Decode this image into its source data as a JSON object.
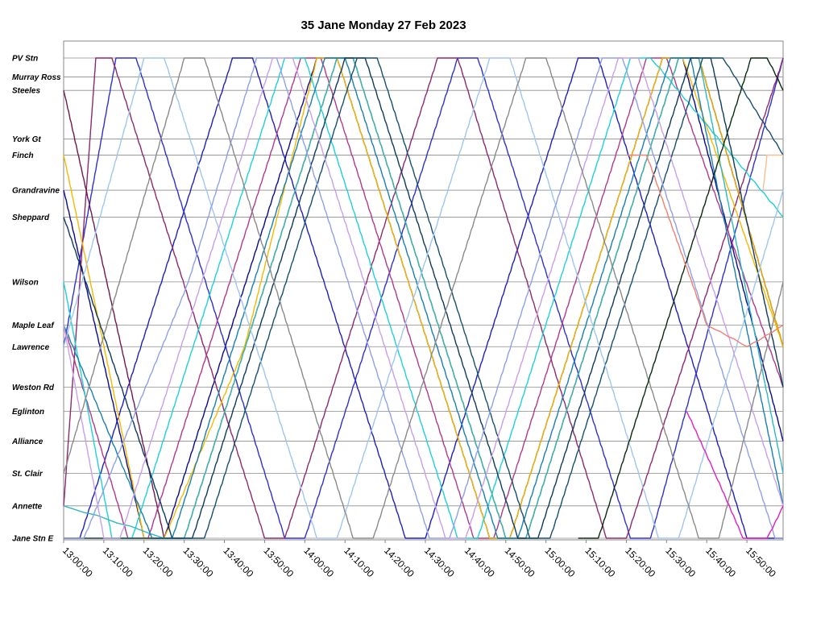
{
  "chart_data": {
    "type": "line",
    "title": "35 Jane Monday 27 Feb 2023",
    "xlabel": "",
    "ylabel": "",
    "x_ticks": [
      "13:00:00",
      "13:10:00",
      "13:20:00",
      "13:30:00",
      "13:40:00",
      "13:50:00",
      "14:00:00",
      "14:10:00",
      "14:20:00",
      "14:30:00",
      "14:40:00",
      "14:50:00",
      "15:00:00",
      "15:10:00",
      "15:20:00",
      "15:30:00",
      "15:40:00",
      "15:50:00"
    ],
    "xlim": [
      "13:00:00",
      "15:59:00"
    ],
    "grid": true,
    "legend": "none",
    "stops": [
      {
        "name": "PV Stn",
        "km": 0
      },
      {
        "name": "Murray Ross",
        "km": 0.7
      },
      {
        "name": "Steeles",
        "km": 1.2
      },
      {
        "name": "York Gt",
        "km": 3.0
      },
      {
        "name": "Finch",
        "km": 3.6
      },
      {
        "name": "Grandravine",
        "km": 4.9
      },
      {
        "name": "Sheppard",
        "km": 5.9
      },
      {
        "name": "Wilson",
        "km": 8.3
      },
      {
        "name": "Maple Leaf",
        "km": 9.9
      },
      {
        "name": "Lawrence",
        "km": 10.7
      },
      {
        "name": "Weston Rd",
        "km": 12.2
      },
      {
        "name": "Eglinton",
        "km": 13.1
      },
      {
        "name": "Alliance",
        "km": 14.2
      },
      {
        "name": "St. Clair",
        "km": 15.4
      },
      {
        "name": "Annette",
        "km": 16.6
      },
      {
        "name": "Jane Stn E",
        "km": 17.8
      }
    ],
    "series": [
      {
        "color": "#1f1fbf",
        "points": [
          [
            "13:00",
            "Jane Stn E"
          ],
          [
            "13:04",
            "Jane Stn E"
          ],
          [
            "13:42",
            "PV Stn"
          ],
          [
            "13:47",
            "PV Stn"
          ],
          [
            "14:25",
            "Jane Stn E"
          ],
          [
            "14:30",
            "Jane Stn E"
          ],
          [
            "15:08",
            "PV Stn"
          ],
          [
            "15:13",
            "PV Stn"
          ],
          [
            "15:50",
            "Jane Stn E"
          ],
          [
            "15:59",
            "Jane Stn E"
          ]
        ]
      },
      {
        "color": "#0a0a8c",
        "points": [
          [
            "13:00",
            "Grandravine"
          ],
          [
            "13:20",
            "Jane Stn E"
          ],
          [
            "13:25",
            "Jane Stn E"
          ],
          [
            "14:03",
            "PV Stn"
          ],
          [
            "14:08",
            "PV Stn"
          ],
          [
            "14:46",
            "Jane Stn E"
          ],
          [
            "14:51",
            "Jane Stn E"
          ],
          [
            "15:29",
            "PV Stn"
          ],
          [
            "15:34",
            "PV Stn"
          ],
          [
            "15:59",
            "Alliance"
          ]
        ]
      },
      {
        "color": "#3030d0",
        "points": [
          [
            "13:00",
            "Lawrence"
          ],
          [
            "13:13",
            "PV Stn"
          ],
          [
            "13:18",
            "PV Stn"
          ],
          [
            "13:55",
            "Jane Stn E"
          ],
          [
            "14:00",
            "Jane Stn E"
          ],
          [
            "14:38",
            "PV Stn"
          ],
          [
            "14:43",
            "PV Stn"
          ],
          [
            "15:21",
            "Jane Stn E"
          ],
          [
            "15:26",
            "Jane Stn E"
          ],
          [
            "15:59",
            "PV Stn"
          ]
        ]
      },
      {
        "color": "#8c2a6e",
        "points": [
          [
            "13:00",
            "Annette"
          ],
          [
            "13:08",
            "PV Stn"
          ],
          [
            "13:12",
            "PV Stn"
          ],
          [
            "13:50",
            "Jane Stn E"
          ],
          [
            "13:55",
            "Jane Stn E"
          ],
          [
            "14:33",
            "PV Stn"
          ],
          [
            "14:38",
            "PV Stn"
          ],
          [
            "15:15",
            "Jane Stn E"
          ],
          [
            "15:20",
            "Jane Stn E"
          ],
          [
            "15:59",
            "PV Stn"
          ]
        ]
      },
      {
        "color": "#6e1a4e",
        "points": [
          [
            "13:00",
            "Steeles"
          ],
          [
            "13:25",
            "Jane Stn E"
          ],
          [
            "13:30",
            "Jane Stn E"
          ],
          [
            "14:08",
            "PV Stn"
          ],
          [
            "14:12",
            "PV Stn"
          ],
          [
            "14:50",
            "Jane Stn E"
          ],
          [
            "14:55",
            "Jane Stn E"
          ],
          [
            "15:33",
            "PV Stn"
          ],
          [
            "15:38",
            "PV Stn"
          ],
          [
            "15:59",
            "Lawrence"
          ]
        ]
      },
      {
        "color": "#b03a8a",
        "points": [
          [
            "13:00",
            "Maple Leaf"
          ],
          [
            "13:16",
            "Jane Stn E"
          ],
          [
            "13:21",
            "Jane Stn E"
          ],
          [
            "13:59",
            "PV Stn"
          ],
          [
            "14:04",
            "PV Stn"
          ],
          [
            "14:42",
            "Jane Stn E"
          ],
          [
            "14:47",
            "Jane Stn E"
          ],
          [
            "15:25",
            "PV Stn"
          ],
          [
            "15:30",
            "PV Stn"
          ],
          [
            "15:59",
            "Weston Rd"
          ]
        ]
      },
      {
        "color": "#f5b800",
        "points": [
          [
            "13:00",
            "Finch"
          ],
          [
            "13:20",
            "Jane Stn E"
          ],
          [
            "13:25",
            "Jane Stn E"
          ],
          [
            "13:45",
            "Lawrence"
          ],
          [
            "14:03",
            "PV Stn"
          ],
          [
            "14:08",
            "PV Stn"
          ],
          [
            "14:46",
            "Jane Stn E"
          ],
          [
            "14:51",
            "Jane Stn E"
          ],
          [
            "15:29",
            "PV Stn"
          ],
          [
            "15:34",
            "PV Stn"
          ],
          [
            "15:59",
            "Lawrence"
          ]
        ]
      },
      {
        "color": "#e6a800",
        "points": [
          [
            "13:00",
            "Jane Stn E"
          ],
          [
            "13:30",
            "Jane Stn E"
          ],
          [
            "14:08",
            "PV Stn"
          ],
          [
            "14:12",
            "PV Stn"
          ],
          [
            "14:50",
            "Jane Stn E"
          ],
          [
            "14:55",
            "Jane Stn E"
          ],
          [
            "15:33",
            "PV Stn"
          ],
          [
            "15:38",
            "PV Stn"
          ],
          [
            "15:59",
            "Lawrence"
          ]
        ]
      },
      {
        "color": "#1fd0d8",
        "points": [
          [
            "13:00",
            "Wilson"
          ],
          [
            "13:12",
            "Jane Stn E"
          ],
          [
            "13:17",
            "Jane Stn E"
          ],
          [
            "13:55",
            "PV Stn"
          ],
          [
            "14:00",
            "PV Stn"
          ],
          [
            "14:38",
            "Jane Stn E"
          ],
          [
            "14:43",
            "Jane Stn E"
          ],
          [
            "15:21",
            "PV Stn"
          ],
          [
            "15:26",
            "PV Stn"
          ],
          [
            "15:59",
            "Sheppard"
          ]
        ]
      },
      {
        "color": "#2fb8c0",
        "points": [
          [
            "13:00",
            "Annette"
          ],
          [
            "13:25",
            "Jane Stn E"
          ],
          [
            "13:30",
            "Jane Stn E"
          ],
          [
            "14:08",
            "PV Stn"
          ],
          [
            "14:12",
            "PV Stn"
          ],
          [
            "14:50",
            "Jane Stn E"
          ],
          [
            "14:55",
            "Jane Stn E"
          ],
          [
            "15:33",
            "PV Stn"
          ],
          [
            "15:38",
            "PV Stn"
          ],
          [
            "15:59",
            "St. Clair"
          ]
        ]
      },
      {
        "color": "#1a7fb0",
        "points": [
          [
            "13:00",
            "Maple Leaf"
          ],
          [
            "13:22",
            "Jane Stn E"
          ],
          [
            "13:27",
            "Jane Stn E"
          ],
          [
            "14:05",
            "PV Stn"
          ],
          [
            "14:10",
            "PV Stn"
          ],
          [
            "14:48",
            "Jane Stn E"
          ],
          [
            "14:53",
            "Jane Stn E"
          ],
          [
            "15:31",
            "PV Stn"
          ],
          [
            "15:36",
            "PV Stn"
          ],
          [
            "15:59",
            "Annette"
          ]
        ]
      },
      {
        "color": "#0f3a5c",
        "points": [
          [
            "13:00",
            "Sheppard"
          ],
          [
            "13:27",
            "Jane Stn E"
          ],
          [
            "13:32",
            "Jane Stn E"
          ],
          [
            "14:10",
            "PV Stn"
          ],
          [
            "14:15",
            "PV Stn"
          ],
          [
            "14:53",
            "Jane Stn E"
          ],
          [
            "14:58",
            "Jane Stn E"
          ],
          [
            "15:36",
            "PV Stn"
          ],
          [
            "15:41",
            "PV Stn"
          ],
          [
            "15:59",
            "Weston Rd"
          ]
        ]
      },
      {
        "color": "#174f6e",
        "points": [
          [
            "13:00",
            "Jane Stn E"
          ],
          [
            "13:35",
            "Jane Stn E"
          ],
          [
            "14:13",
            "PV Stn"
          ],
          [
            "14:18",
            "PV Stn"
          ],
          [
            "14:56",
            "Jane Stn E"
          ],
          [
            "15:01",
            "Jane Stn E"
          ],
          [
            "15:39",
            "PV Stn"
          ],
          [
            "15:44",
            "PV Stn"
          ],
          [
            "15:59",
            "Finch"
          ]
        ]
      },
      {
        "color": "#9fc6ee",
        "points": [
          [
            "13:00",
            "Lawrence"
          ],
          [
            "13:20",
            "PV Stn"
          ],
          [
            "13:25",
            "PV Stn"
          ],
          [
            "14:03",
            "Jane Stn E"
          ],
          [
            "14:08",
            "Jane Stn E"
          ],
          [
            "14:46",
            "PV Stn"
          ],
          [
            "14:51",
            "PV Stn"
          ],
          [
            "15:28",
            "Jane Stn E"
          ],
          [
            "15:33",
            "Jane Stn E"
          ],
          [
            "15:59",
            "Grandravine"
          ]
        ]
      },
      {
        "color": "#8fa0e8",
        "points": [
          [
            "13:00",
            "Jane Stn E"
          ],
          [
            "13:05",
            "Jane Stn E"
          ],
          [
            "13:31",
            "Wilson"
          ],
          [
            "13:48",
            "PV Stn"
          ],
          [
            "13:53",
            "PV Stn"
          ],
          [
            "14:31",
            "Jane Stn E"
          ],
          [
            "14:36",
            "Jane Stn E"
          ],
          [
            "15:14",
            "PV Stn"
          ],
          [
            "15:19",
            "PV Stn"
          ],
          [
            "15:57",
            "Jane Stn E"
          ],
          [
            "15:59",
            "Jane Stn E"
          ]
        ]
      },
      {
        "color": "#c7a0ea",
        "points": [
          [
            "13:00",
            "Maple Leaf"
          ],
          [
            "13:10",
            "Jane Stn E"
          ],
          [
            "13:14",
            "Jane Stn E"
          ],
          [
            "13:52",
            "PV Stn"
          ],
          [
            "13:57",
            "PV Stn"
          ],
          [
            "14:35",
            "Jane Stn E"
          ],
          [
            "14:40",
            "Jane Stn E"
          ],
          [
            "15:18",
            "PV Stn"
          ],
          [
            "15:23",
            "PV Stn"
          ],
          [
            "15:59",
            "Annette"
          ]
        ]
      },
      {
        "color": "#8a8a8a",
        "points": [
          [
            "13:00",
            "St. Clair"
          ],
          [
            "13:30",
            "PV Stn"
          ],
          [
            "13:35",
            "PV Stn"
          ],
          [
            "14:12",
            "Jane Stn E"
          ],
          [
            "14:17",
            "Jane Stn E"
          ],
          [
            "14:55",
            "PV Stn"
          ],
          [
            "15:00",
            "PV Stn"
          ],
          [
            "15:38",
            "Jane Stn E"
          ],
          [
            "15:43",
            "Jane Stn E"
          ],
          [
            "15:59",
            "Wilson"
          ]
        ]
      },
      {
        "color": "#0b2a10",
        "points": [
          [
            "15:08",
            "Jane Stn E"
          ],
          [
            "15:13",
            "Jane Stn E"
          ],
          [
            "15:51",
            "PV Stn"
          ],
          [
            "15:55",
            "PV Stn"
          ],
          [
            "15:59",
            "Steeles"
          ]
        ]
      },
      {
        "color": "#f08070",
        "points": [
          [
            "15:20",
            "Finch"
          ],
          [
            "15:25",
            "Finch"
          ],
          [
            "15:40",
            "Maple Leaf"
          ],
          [
            "15:50",
            "Lawrence"
          ],
          [
            "15:59",
            "Maple Leaf"
          ]
        ]
      },
      {
        "color": "#e020c0",
        "points": [
          [
            "15:35",
            "Eglinton"
          ],
          [
            "15:42",
            "St. Clair"
          ],
          [
            "15:49",
            "Jane Stn E"
          ],
          [
            "15:55",
            "Jane Stn E"
          ],
          [
            "15:59",
            "Annette"
          ]
        ]
      },
      {
        "color": "#f5c090",
        "points": [
          [
            "15:54",
            "Grandravine"
          ],
          [
            "15:55",
            "Finch"
          ],
          [
            "15:59",
            "Finch"
          ]
        ]
      }
    ]
  }
}
